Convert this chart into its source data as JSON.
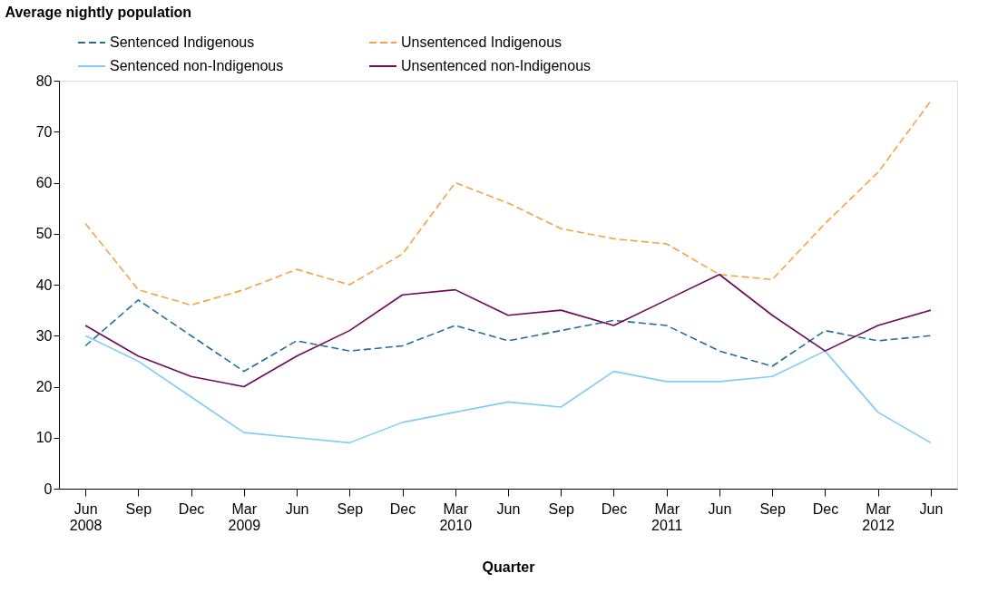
{
  "chart_data": {
    "type": "line",
    "xlabel": "Quarter",
    "ylabel": "Average nightly population",
    "categories": [
      "Jun 2008",
      "Sep",
      "Dec",
      "Mar 2009",
      "Jun",
      "Sep",
      "Dec",
      "Mar 2010",
      "Jun",
      "Sep",
      "Dec",
      "Mar 2011",
      "Jun",
      "Sep",
      "Dec",
      "Mar 2012",
      "Jun"
    ],
    "series": [
      {
        "name": "Sentenced Indigenous",
        "color": "#1f6f96",
        "line_style": "dashed",
        "values": [
          28,
          37,
          30,
          23,
          29,
          27,
          28,
          32,
          29,
          31,
          33,
          32,
          27,
          24,
          31,
          29,
          30
        ]
      },
      {
        "name": "Sentenced non-Indigenous",
        "color": "#7fcdf5",
        "line_style": "solid",
        "values": [
          30,
          25,
          18,
          11,
          10,
          9,
          13,
          15,
          17,
          16,
          23,
          21,
          21,
          22,
          27,
          15,
          9
        ]
      },
      {
        "name": "Unsentenced Indigenous",
        "color": "#f7a23f",
        "line_style": "dashed",
        "values": [
          52,
          39,
          36,
          39,
          43,
          40,
          46,
          60,
          56,
          51,
          49,
          48,
          42,
          41,
          52,
          62,
          76
        ]
      },
      {
        "name": "Unsentenced non-Indigenous",
        "color": "#6e0a5a",
        "line_style": "solid",
        "values": [
          32,
          26,
          22,
          20,
          26,
          31,
          38,
          39,
          34,
          35,
          32,
          37,
          42,
          34,
          27,
          32,
          35
        ]
      }
    ],
    "ylim": [
      0,
      80
    ],
    "yticks": [
      0,
      10,
      20,
      30,
      40,
      50,
      60,
      70,
      80
    ],
    "grid": false,
    "legend": "top",
    "marker": "none"
  }
}
